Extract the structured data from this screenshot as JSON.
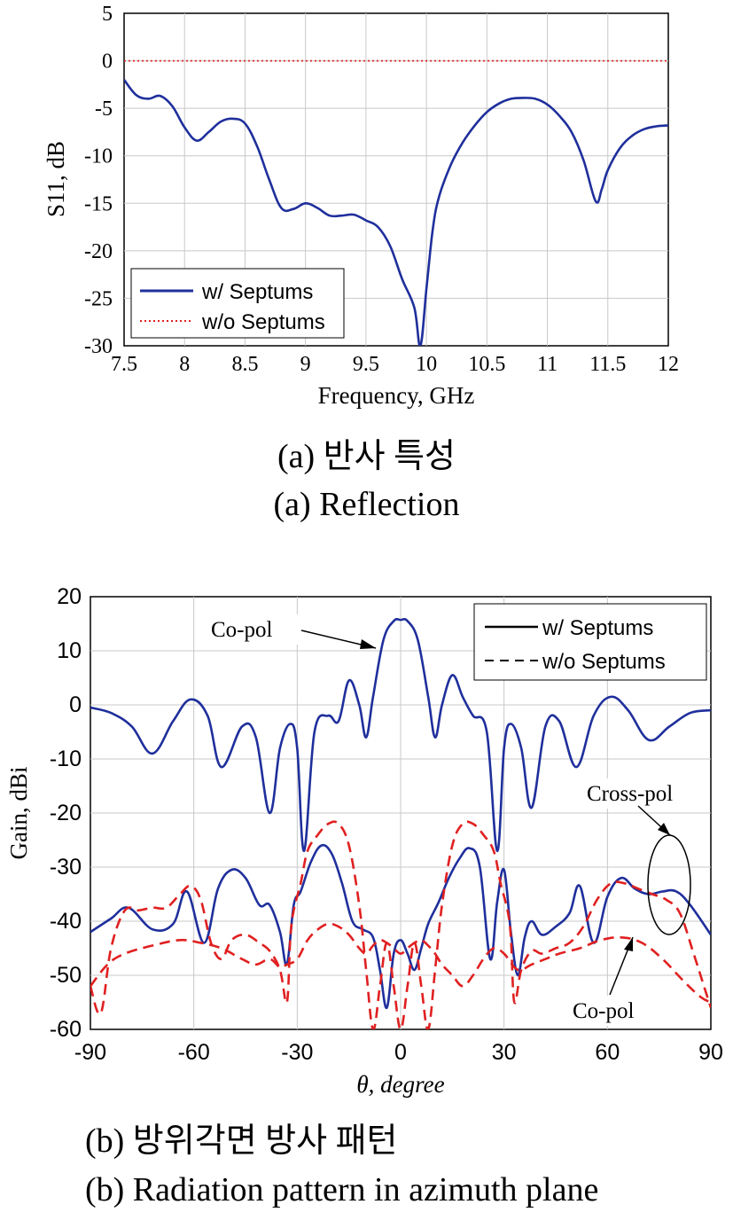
{
  "chart_data": [
    {
      "type": "line",
      "xlabel": "Frequency, GHz",
      "ylabel": "S11, dB",
      "xlim": [
        7.5,
        12
      ],
      "ylim": [
        -30,
        5
      ],
      "xticks": [
        "7.5",
        "8",
        "8.5",
        "9",
        "9.5",
        "10",
        "10.5",
        "11",
        "11.5",
        "12"
      ],
      "yticks": [
        "5",
        "0",
        "-5",
        "-10",
        "-15",
        "-20",
        "-25",
        "-30"
      ],
      "grid": true,
      "legend_position": "bottom-left",
      "series": [
        {
          "name": "w/ Septums",
          "color": "#1f2f9c",
          "style": "solid",
          "x": [
            7.5,
            7.6,
            7.7,
            7.8,
            7.9,
            8.0,
            8.1,
            8.2,
            8.3,
            8.4,
            8.5,
            8.6,
            8.7,
            8.8,
            8.9,
            9.0,
            9.1,
            9.2,
            9.3,
            9.4,
            9.5,
            9.6,
            9.7,
            9.8,
            9.9,
            9.95,
            10.0,
            10.05,
            10.1,
            10.2,
            10.3,
            10.4,
            10.5,
            10.6,
            10.7,
            10.8,
            10.9,
            11.0,
            11.1,
            11.2,
            11.3,
            11.4,
            11.45,
            11.5,
            11.6,
            11.7,
            11.8,
            11.9,
            12.0
          ],
          "y": [
            -2,
            -3.6,
            -4,
            -3.7,
            -4.8,
            -7,
            -8.4,
            -7.5,
            -6.4,
            -6.1,
            -6.6,
            -9,
            -12.5,
            -15.5,
            -15.6,
            -15,
            -15.5,
            -16.3,
            -16.3,
            -16.2,
            -16.8,
            -17.5,
            -19.5,
            -23,
            -26,
            -30,
            -24,
            -18,
            -14.5,
            -11,
            -8.6,
            -6.8,
            -5.4,
            -4.5,
            -4,
            -3.9,
            -4,
            -4.6,
            -5.8,
            -7.5,
            -10.5,
            -14.8,
            -13.5,
            -11.5,
            -9.2,
            -7.9,
            -7.2,
            -6.9,
            -6.8
          ]
        },
        {
          "name": "w/o Septums",
          "color": "#e02020",
          "style": "dotted",
          "x": [
            7.5,
            12
          ],
          "y": [
            0,
            0
          ]
        }
      ]
    },
    {
      "type": "line",
      "xlabel": "θ, degree",
      "ylabel": "Gain, dBi",
      "xlim": [
        -90,
        90
      ],
      "ylim": [
        -60,
        20
      ],
      "xticks": [
        "-90",
        "-60",
        "-30",
        "0",
        "30",
        "60",
        "90"
      ],
      "yticks": [
        "20",
        "10",
        "0",
        "-10",
        "-20",
        "-30",
        "-40",
        "-50",
        "-60"
      ],
      "grid": true,
      "legend_position": "top-right",
      "legend": [
        {
          "name": "w/ Septums",
          "style": "solid"
        },
        {
          "name": "w/o Septums",
          "style": "dashed"
        }
      ],
      "annotations": {
        "copol_top": "Co-pol",
        "crosspol": "Cross-pol",
        "copol_bottom": "Co-pol"
      },
      "series": [
        {
          "group": "w/ Septums Co-pol",
          "color": "#1f2f9c",
          "style": "solid",
          "x": [
            -90,
            -84,
            -78,
            -72,
            -66,
            -61,
            -56,
            -52,
            -46,
            -42,
            -38,
            -35,
            -32,
            -30,
            -28,
            -25,
            -21,
            -18,
            -15,
            -12,
            -10,
            -8,
            -5,
            -2,
            0,
            2,
            5,
            8,
            10,
            12,
            15,
            18,
            21,
            25,
            28,
            30,
            32,
            35,
            38,
            42,
            46,
            51,
            56,
            61,
            66,
            72,
            78,
            84,
            90
          ],
          "y": [
            -0.5,
            -1.5,
            -4,
            -9,
            -3,
            1,
            -2,
            -11.5,
            -4,
            -6,
            -20,
            -8,
            -3.5,
            -8,
            -27,
            -5,
            -2,
            -3,
            4.5,
            0,
            -6,
            1.5,
            12,
            15.5,
            15.7,
            15.5,
            12,
            1.5,
            -6,
            0,
            5.5,
            1.5,
            -2,
            -5,
            -27,
            -8,
            -3.5,
            -8,
            -19,
            -4,
            -3,
            -11.5,
            -2,
            1.5,
            -1,
            -6.5,
            -4,
            -1.5,
            -1
          ]
        },
        {
          "group": "w/ Septums Cross-pol",
          "color": "#1f2f9c",
          "style": "solid",
          "x": [
            -90,
            -84,
            -79,
            -72,
            -66,
            -62,
            -57,
            -53,
            -49,
            -45,
            -41,
            -38,
            -35,
            -33,
            -31,
            -29,
            -26,
            -23,
            -20,
            -17,
            -14,
            -11,
            -8,
            -6,
            -4,
            -2,
            0,
            2,
            4,
            6,
            8,
            11,
            14,
            17,
            20,
            23,
            26,
            28,
            30,
            32,
            34,
            36,
            38,
            41,
            45,
            49,
            52,
            56,
            60,
            64,
            68,
            72,
            76,
            80,
            84,
            90
          ],
          "y": [
            -42,
            -39.5,
            -37.5,
            -41.5,
            -40.5,
            -34.5,
            -44,
            -34,
            -30.5,
            -32,
            -37,
            -37,
            -42,
            -48,
            -37,
            -34.5,
            -29,
            -26,
            -27.5,
            -33,
            -40,
            -41.5,
            -43,
            -49,
            -56,
            -46,
            -43.5,
            -46,
            -49,
            -45,
            -40.5,
            -36.5,
            -32,
            -28.5,
            -26.5,
            -30,
            -47,
            -36.5,
            -30.5,
            -42,
            -50,
            -43,
            -40,
            -42.5,
            -41,
            -38.5,
            -33.5,
            -44,
            -35.5,
            -32,
            -34,
            -35,
            -34.5,
            -34.5,
            -37,
            -42.5
          ]
        },
        {
          "group": "w/o Septums Co-pol",
          "color": "#e02020",
          "style": "dashed",
          "x": [
            -90,
            -85,
            -80,
            -72,
            -64,
            -58,
            -52,
            -46,
            -42,
            -38,
            -35,
            -33,
            -30,
            -27,
            -24,
            -21,
            -18,
            -15,
            -12,
            -10,
            -8,
            -6,
            -4,
            -2,
            0,
            2,
            4,
            6,
            8,
            10,
            12,
            15,
            18,
            21,
            24,
            27,
            30,
            33,
            35,
            38,
            42,
            46,
            52,
            58,
            64,
            70,
            76,
            82,
            87,
            90
          ],
          "y": [
            -52,
            -48,
            -46,
            -44.5,
            -43.5,
            -44,
            -45,
            -47,
            -48,
            -47,
            -48.5,
            -48,
            -47,
            -43.5,
            -41.5,
            -40.5,
            -41,
            -42.5,
            -45,
            -46,
            -44.5,
            -43.5,
            -44,
            -45,
            -46,
            -45,
            -44,
            -43.5,
            -44.5,
            -46,
            -48,
            -50,
            -52,
            -50,
            -47,
            -45,
            -46,
            -48.5,
            -49,
            -48,
            -47,
            -46,
            -45,
            -43.5,
            -43,
            -44,
            -47,
            -51,
            -54,
            -55
          ]
        },
        {
          "group": "w/o Septums Cross-pol",
          "color": "#e02020",
          "style": "dashed",
          "x": [
            -90,
            -87,
            -84,
            -80,
            -76,
            -72,
            -68,
            -64,
            -61,
            -58,
            -55,
            -52,
            -49,
            -45,
            -41,
            -38,
            -35,
            -33,
            -32,
            -31,
            -29,
            -27,
            -24,
            -21,
            -18,
            -15,
            -12,
            -10,
            -8,
            -6,
            -4,
            -2,
            0,
            2,
            4,
            6,
            8,
            10,
            12,
            15,
            18,
            21,
            24,
            27,
            29,
            31,
            32,
            33,
            35,
            38,
            41,
            45,
            49,
            53,
            57,
            61,
            65,
            69,
            73,
            77,
            81,
            85,
            88,
            90
          ],
          "y": [
            -52,
            -57,
            -45,
            -38,
            -38,
            -37.5,
            -37.5,
            -35,
            -33.5,
            -36,
            -44,
            -47,
            -43.5,
            -42.5,
            -44,
            -45.5,
            -49,
            -55,
            -43,
            -38,
            -33,
            -27,
            -24,
            -22,
            -22,
            -26,
            -37,
            -49,
            -60,
            -52,
            -44,
            -52,
            -60,
            -52,
            -44,
            -52,
            -60,
            -49,
            -37,
            -26,
            -22,
            -22,
            -24,
            -27,
            -33,
            -38,
            -43,
            -55,
            -49,
            -45.5,
            -46,
            -45,
            -44,
            -41,
            -36,
            -33,
            -33,
            -34,
            -35,
            -36,
            -38.5,
            -46,
            -52,
            -56
          ]
        }
      ]
    }
  ],
  "captions": {
    "a_ko": "(a)  반사 특성",
    "a_en": "(a)  Reflection",
    "b_ko": "(b)  방위각면 방사 패턴",
    "b_en": "(b)  Radiation pattern in azimuth plane"
  }
}
